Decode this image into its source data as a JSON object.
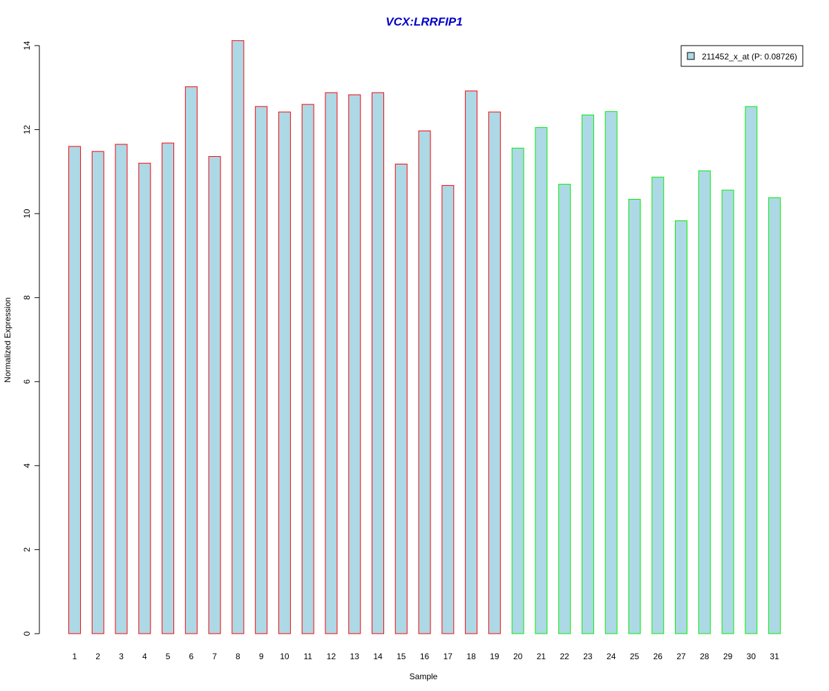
{
  "chart_data": {
    "type": "bar",
    "title": "VCX:LRRFIP1",
    "xlabel": "Sample",
    "ylabel": "Normalized Expression",
    "categories": [
      "1",
      "2",
      "3",
      "4",
      "5",
      "6",
      "7",
      "8",
      "9",
      "10",
      "11",
      "12",
      "13",
      "14",
      "15",
      "16",
      "17",
      "18",
      "19",
      "20",
      "21",
      "22",
      "23",
      "24",
      "25",
      "26",
      "27",
      "28",
      "29",
      "30",
      "31"
    ],
    "series": [
      {
        "name": "211452_x_at (P: 0.08726)",
        "values": [
          11.6,
          11.48,
          11.65,
          11.2,
          11.68,
          13.02,
          11.36,
          14.12,
          12.55,
          12.42,
          12.6,
          12.88,
          12.83,
          12.88,
          11.18,
          11.97,
          10.67,
          12.92,
          12.42,
          11.56,
          12.05,
          10.7,
          12.35,
          12.43,
          10.34,
          10.87,
          9.83,
          11.02,
          10.56,
          12.55,
          10.38
        ]
      }
    ],
    "group_border_colors": [
      "#ff0000",
      "#ff0000",
      "#ff0000",
      "#ff0000",
      "#ff0000",
      "#ff0000",
      "#ff0000",
      "#ff0000",
      "#ff0000",
      "#ff0000",
      "#ff0000",
      "#ff0000",
      "#ff0000",
      "#ff0000",
      "#ff0000",
      "#ff0000",
      "#ff0000",
      "#ff0000",
      "#ff0000",
      "#00ee00",
      "#00ee00",
      "#00ee00",
      "#00ee00",
      "#00ee00",
      "#00ee00",
      "#00ee00",
      "#00ee00",
      "#00ee00",
      "#00ee00",
      "#00ee00",
      "#00ee00"
    ],
    "bar_fill_color": "#add8e6",
    "title_color": "#0000cc",
    "ylim": [
      0,
      14
    ],
    "yticks": [
      "0",
      "2",
      "4",
      "6",
      "8",
      "10",
      "12",
      "14"
    ],
    "grid": false,
    "legend_position": "top-right"
  }
}
